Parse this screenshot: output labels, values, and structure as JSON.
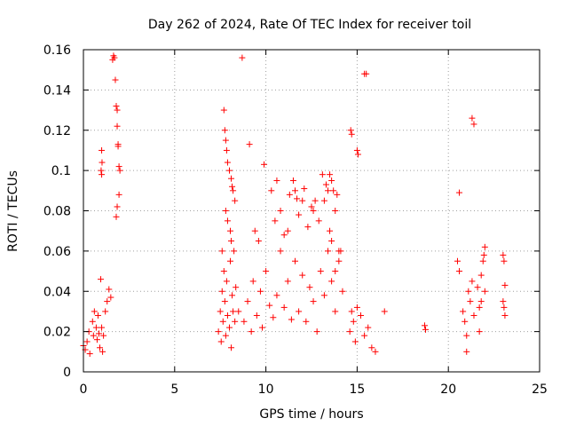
{
  "chart_data": {
    "type": "scatter",
    "title": "Day 262 of 2024, Rate Of TEC Index for receiver toil",
    "xlabel": "GPS time / hours",
    "ylabel": "ROTI / TECUs",
    "xlim": [
      0,
      25
    ],
    "ylim": [
      0,
      0.16
    ],
    "x_ticks": [
      0,
      5,
      10,
      15,
      20,
      25
    ],
    "x_tick_labels": [
      "0",
      "5",
      "10",
      "15",
      "20",
      "25"
    ],
    "y_ticks": [
      0,
      0.02,
      0.04,
      0.06,
      0.08,
      0.1,
      0.12,
      0.14,
      0.16
    ],
    "y_tick_labels": [
      "0",
      "0.02",
      "0.04",
      "0.06",
      "0.08",
      "0.1",
      "0.12",
      "0.14",
      "0.16"
    ],
    "grid": true,
    "marker": "+",
    "color": "#ff0000",
    "series": [
      {
        "name": "ROTI",
        "x": [
          0.0,
          0.1,
          0.2,
          0.3,
          0.35,
          0.5,
          0.55,
          0.6,
          0.7,
          0.75,
          0.8,
          0.85,
          0.9,
          1.0,
          1.05,
          1.1,
          1.2,
          1.3,
          0.95,
          0.97,
          1.0,
          1.02,
          1.0,
          1.4,
          1.5,
          1.6,
          1.65,
          1.7,
          1.75,
          1.8,
          1.85,
          1.85,
          1.9,
          1.9,
          1.95,
          2.0,
          1.95,
          1.85,
          1.8,
          7.4,
          7.5,
          7.55,
          7.6,
          7.65,
          7.7,
          7.75,
          7.8,
          7.85,
          7.9,
          8.0,
          8.05,
          8.1,
          8.15,
          8.2,
          8.25,
          8.3,
          8.35,
          7.7,
          7.75,
          7.8,
          7.85,
          7.9,
          8.0,
          8.1,
          8.15,
          8.2,
          8.3,
          7.8,
          7.9,
          8.05,
          8.1,
          7.6,
          8.5,
          8.8,
          9.0,
          9.2,
          9.3,
          9.5,
          9.7,
          9.8,
          10.0,
          10.2,
          10.4,
          10.6,
          10.8,
          11.0,
          11.2,
          11.4,
          11.6,
          11.8,
          12.0,
          12.2,
          12.4,
          12.6,
          12.8,
          13.0,
          13.2,
          13.4,
          13.6,
          13.8,
          14.0,
          14.2,
          9.4,
          9.6,
          10.5,
          10.8,
          11.0,
          11.2,
          11.6,
          11.8,
          12.0,
          12.3,
          12.6,
          12.9,
          13.2,
          13.4,
          13.6,
          13.8,
          13.9,
          10.6,
          11.3,
          11.7,
          12.5,
          13.3,
          13.5,
          13.7,
          13.5,
          13.6,
          13.8,
          14.0,
          8.7,
          9.1,
          9.9,
          10.3,
          11.5,
          12.1,
          12.7,
          13.1,
          14.1,
          14.6,
          14.7,
          14.8,
          14.9,
          15.0,
          15.2,
          15.4,
          15.6,
          15.8,
          16.0,
          16.5,
          15.5,
          14.65,
          14.7,
          15.0,
          15.05,
          15.4,
          18.7,
          18.75,
          20.5,
          20.6,
          20.8,
          20.9,
          21.0,
          21.0,
          21.1,
          21.2,
          21.3,
          21.4,
          21.6,
          21.7,
          21.8,
          21.9,
          21.95,
          22.0,
          20.6,
          21.3,
          21.4,
          21.7,
          21.8,
          22.0,
          23.0,
          23.05,
          23.1,
          23.0,
          23.1,
          23.05
        ],
        "y": [
          0.013,
          0.011,
          0.015,
          0.02,
          0.009,
          0.025,
          0.018,
          0.03,
          0.022,
          0.016,
          0.028,
          0.019,
          0.012,
          0.022,
          0.01,
          0.018,
          0.03,
          0.035,
          0.046,
          0.1,
          0.11,
          0.104,
          0.098,
          0.041,
          0.037,
          0.155,
          0.157,
          0.156,
          0.145,
          0.132,
          0.13,
          0.122,
          0.113,
          0.112,
          0.102,
          0.1,
          0.088,
          0.082,
          0.077,
          0.02,
          0.03,
          0.015,
          0.04,
          0.025,
          0.05,
          0.035,
          0.018,
          0.045,
          0.028,
          0.022,
          0.055,
          0.012,
          0.038,
          0.03,
          0.06,
          0.025,
          0.042,
          0.13,
          0.12,
          0.115,
          0.11,
          0.104,
          0.1,
          0.096,
          0.092,
          0.09,
          0.085,
          0.08,
          0.075,
          0.07,
          0.065,
          0.06,
          0.03,
          0.025,
          0.035,
          0.02,
          0.045,
          0.028,
          0.04,
          0.022,
          0.05,
          0.033,
          0.027,
          0.038,
          0.06,
          0.032,
          0.045,
          0.026,
          0.055,
          0.03,
          0.048,
          0.025,
          0.042,
          0.035,
          0.02,
          0.05,
          0.038,
          0.06,
          0.045,
          0.03,
          0.055,
          0.04,
          0.07,
          0.065,
          0.075,
          0.08,
          0.068,
          0.07,
          0.09,
          0.078,
          0.085,
          0.072,
          0.08,
          0.075,
          0.085,
          0.09,
          0.095,
          0.08,
          0.088,
          0.095,
          0.088,
          0.086,
          0.082,
          0.093,
          0.098,
          0.09,
          0.07,
          0.065,
          0.05,
          0.06,
          0.156,
          0.113,
          0.103,
          0.09,
          0.095,
          0.091,
          0.085,
          0.098,
          0.06,
          0.02,
          0.03,
          0.025,
          0.015,
          0.032,
          0.028,
          0.018,
          0.022,
          0.012,
          0.01,
          0.03,
          0.148,
          0.12,
          0.118,
          0.11,
          0.108,
          0.148,
          0.023,
          0.021,
          0.055,
          0.05,
          0.03,
          0.025,
          0.018,
          0.01,
          0.04,
          0.035,
          0.045,
          0.028,
          0.042,
          0.032,
          0.048,
          0.055,
          0.058,
          0.062,
          0.089,
          0.126,
          0.123,
          0.02,
          0.035,
          0.04,
          0.058,
          0.055,
          0.043,
          0.035,
          0.028,
          0.032
        ]
      }
    ]
  }
}
